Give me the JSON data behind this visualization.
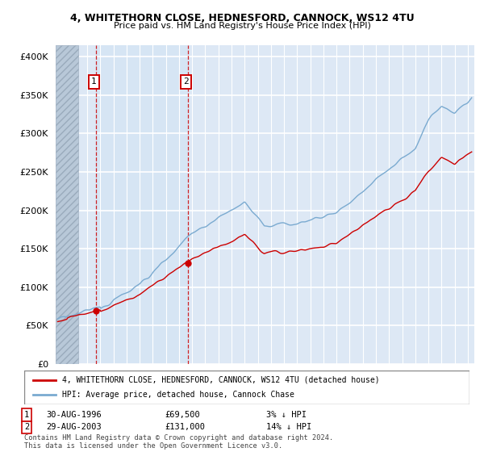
{
  "title1": "4, WHITETHORN CLOSE, HEDNESFORD, CANNOCK, WS12 4TU",
  "title2": "Price paid vs. HM Land Registry's House Price Index (HPI)",
  "yticks": [
    0,
    50000,
    100000,
    150000,
    200000,
    250000,
    300000,
    350000,
    400000
  ],
  "ylim": [
    0,
    415000
  ],
  "xlim_start": 1993.6,
  "xlim_end": 2025.5,
  "hatch_end_year": 1995.3,
  "sale1_year": 1996.65,
  "sale1_price": 69500,
  "sale2_year": 2003.65,
  "sale2_price": 131000,
  "legend_label_red": "4, WHITETHORN CLOSE, HEDNESFORD, CANNOCK, WS12 4TU (detached house)",
  "legend_label_blue": "HPI: Average price, detached house, Cannock Chase",
  "annotation1_date": "30-AUG-1996",
  "annotation1_price": "£69,500",
  "annotation1_rel": "3% ↓ HPI",
  "annotation2_date": "29-AUG-2003",
  "annotation2_price": "£131,000",
  "annotation2_rel": "14% ↓ HPI",
  "footer": "Contains HM Land Registry data © Crown copyright and database right 2024.\nThis data is licensed under the Open Government Licence v3.0.",
  "bg_color": "#dde8f5",
  "shaded_bg": "#ccdaed",
  "hatch_color": "#b8c8d8",
  "grid_color": "#ffffff",
  "red_line_color": "#cc0000",
  "blue_line_color": "#7aaad0"
}
